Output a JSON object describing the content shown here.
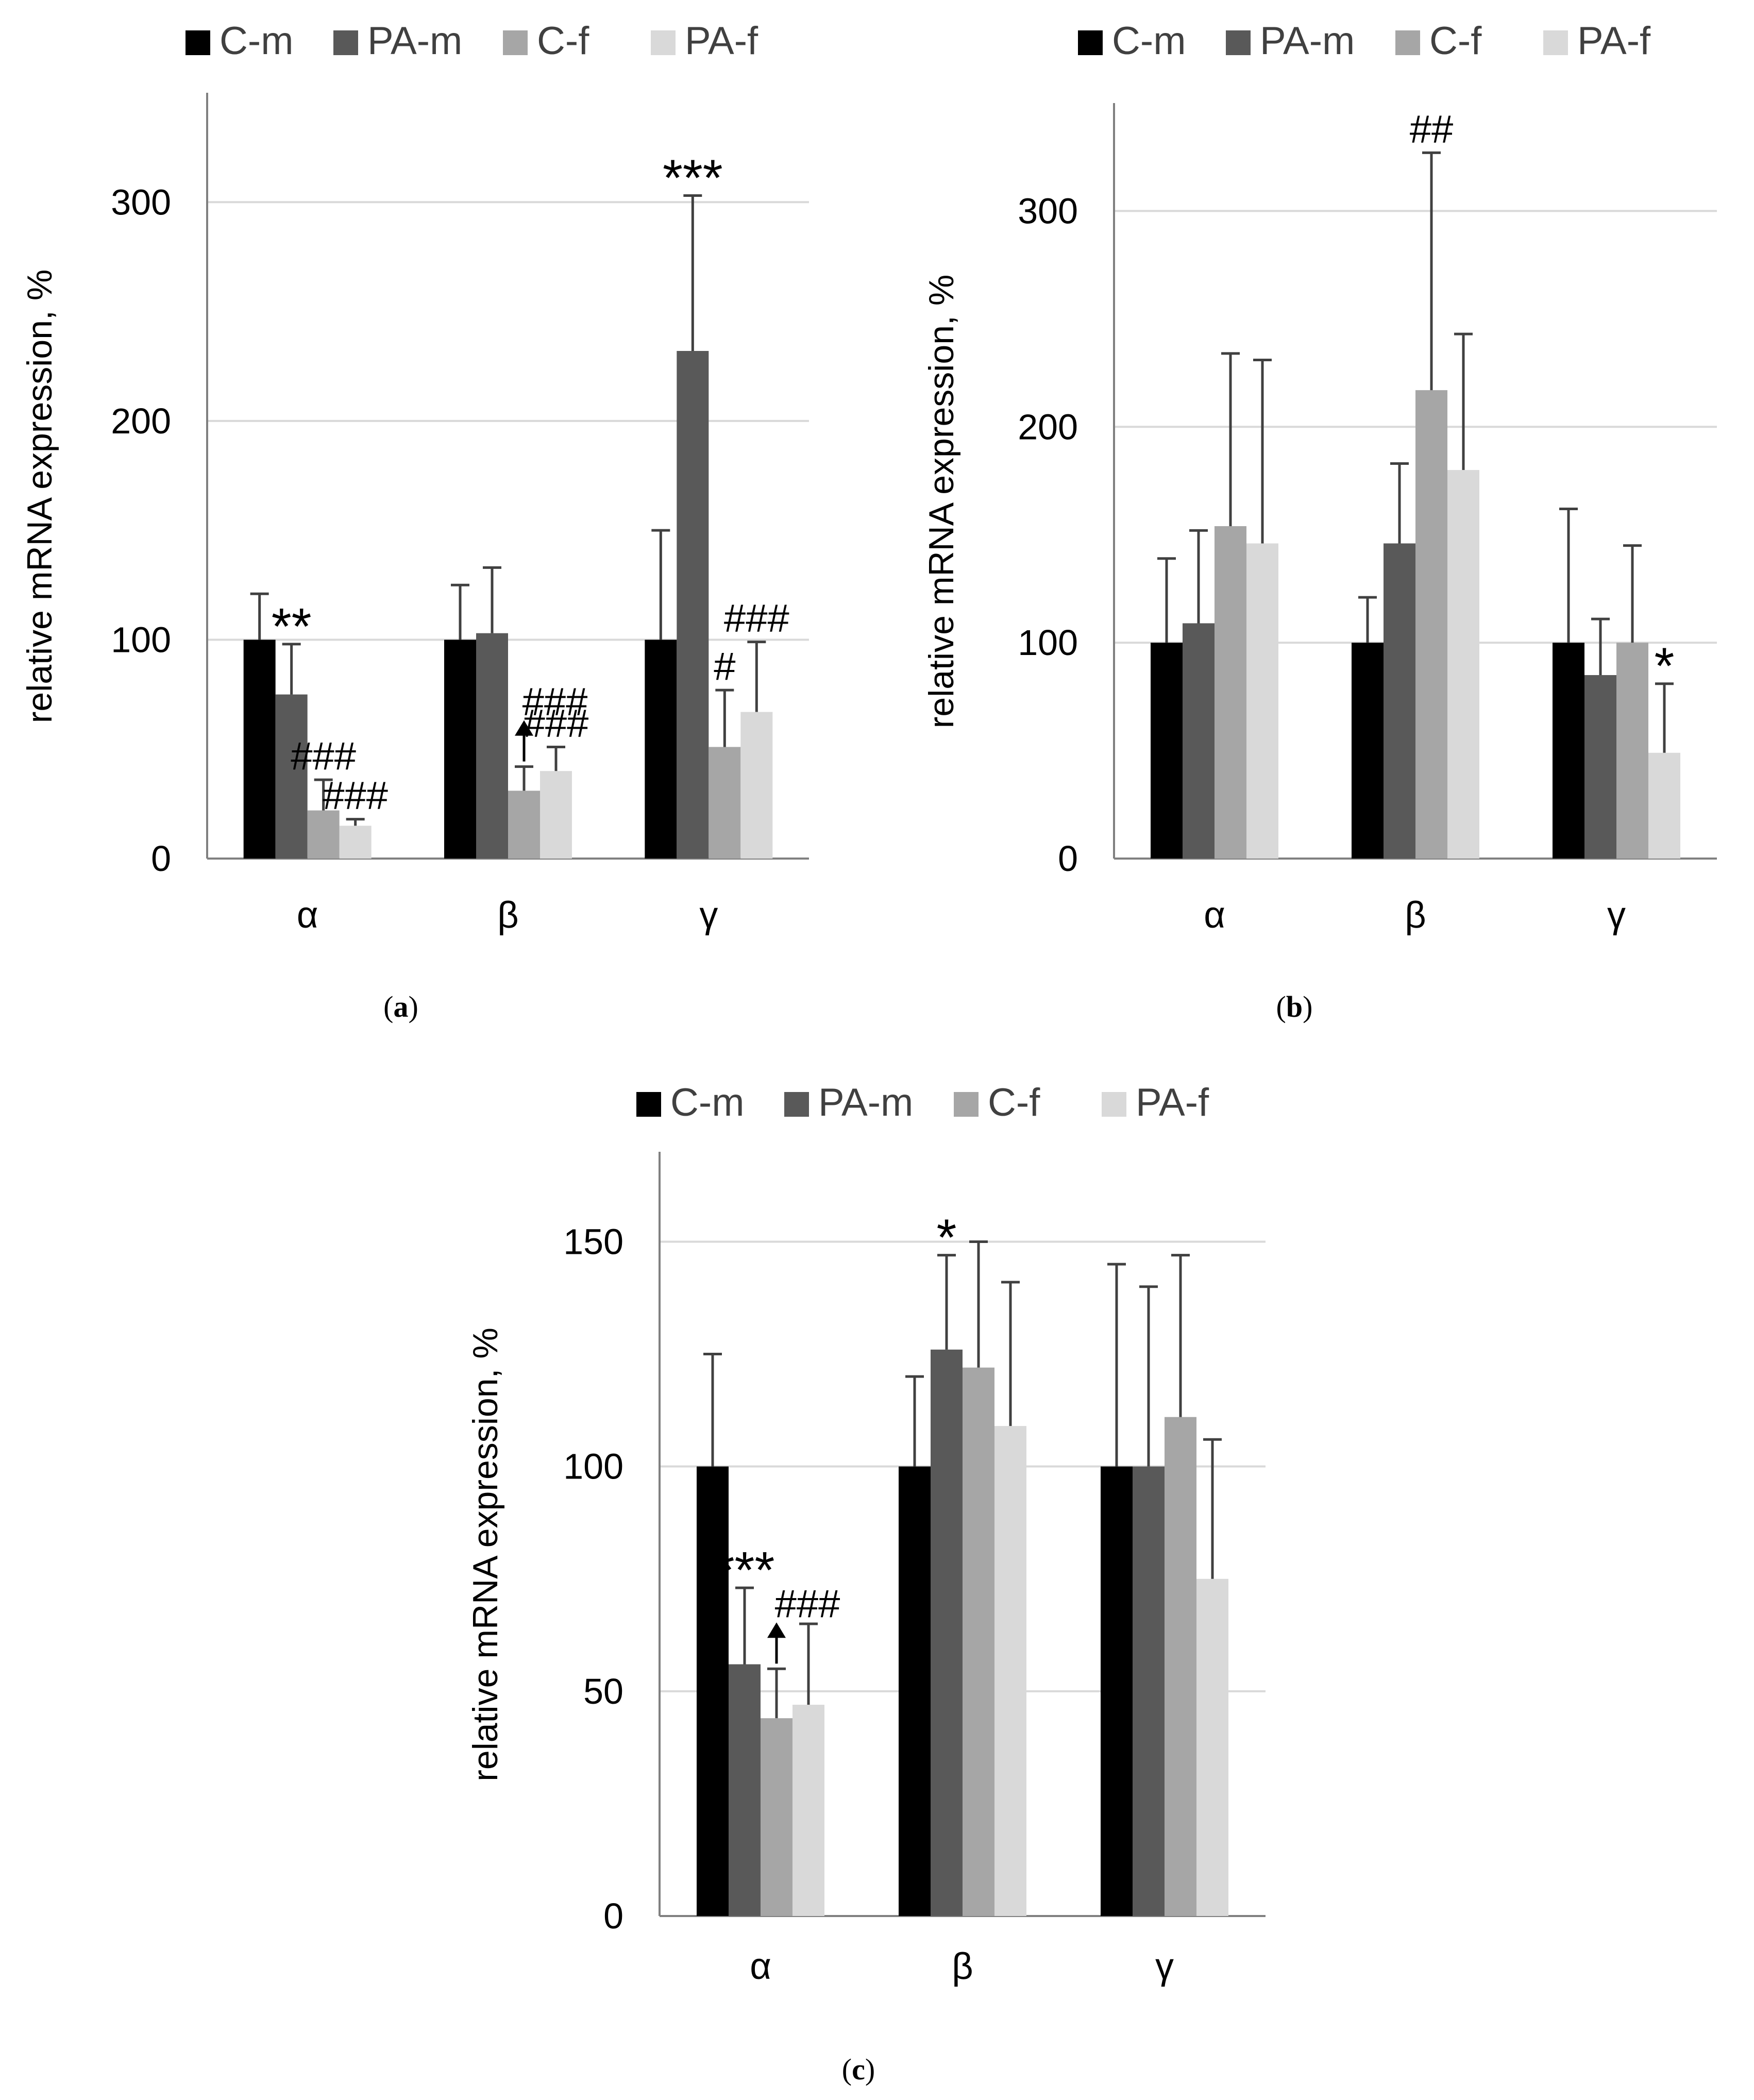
{
  "colors": {
    "C-m": "#000000",
    "PA-m": "#595959",
    "C-f": "#a6a6a6",
    "PA-f": "#d9d9d9",
    "grid": "#d9d9d9",
    "axis": "#808080",
    "error": "#404040",
    "text": "#000000"
  },
  "chart_data": [
    {
      "id": "a",
      "type": "bar",
      "caption_label": "a",
      "categories": [
        "α",
        "β",
        "γ"
      ],
      "ylabel": "relative mRNA expression, %",
      "xlabel": "",
      "ylim": [
        0,
        350
      ],
      "yticks": [
        0,
        100,
        200,
        300
      ],
      "grid": true,
      "legend_position": "top",
      "series": [
        {
          "name": "C-m",
          "values": [
            100,
            100,
            100
          ],
          "errors": [
            21,
            25,
            50
          ]
        },
        {
          "name": "PA-m",
          "values": [
            75,
            103,
            232
          ],
          "errors": [
            23,
            30,
            71
          ]
        },
        {
          "name": "C-f",
          "values": [
            22,
            31,
            51
          ],
          "errors": [
            14,
            11,
            26
          ]
        },
        {
          "name": "PA-f",
          "values": [
            15,
            40,
            67
          ],
          "errors": [
            3,
            11,
            32
          ]
        }
      ],
      "annotations": [
        {
          "text": "**",
          "category": "α",
          "series": "PA-m"
        },
        {
          "text": "###",
          "category": "α",
          "series": "C-f"
        },
        {
          "text": "###",
          "category": "α",
          "series": "PA-f"
        },
        {
          "text": "###",
          "category": "β",
          "series": "C-f",
          "arrow": true
        },
        {
          "text": "###",
          "category": "β",
          "series": "PA-f"
        },
        {
          "text": "***",
          "category": "γ",
          "series": "PA-m"
        },
        {
          "text": "#",
          "category": "γ",
          "series": "C-f"
        },
        {
          "text": "###",
          "category": "γ",
          "series": "PA-f"
        }
      ]
    },
    {
      "id": "b",
      "type": "bar",
      "caption_label": "b",
      "categories": [
        "α",
        "β",
        "γ"
      ],
      "ylabel": "relative mRNA expression, %",
      "xlabel": "",
      "ylim": [
        0,
        350
      ],
      "yticks": [
        0,
        100,
        200,
        300
      ],
      "grid": true,
      "legend_position": "top",
      "series": [
        {
          "name": "C-m",
          "values": [
            100,
            100,
            100
          ],
          "errors": [
            39,
            21,
            62
          ]
        },
        {
          "name": "PA-m",
          "values": [
            109,
            146,
            85
          ],
          "errors": [
            43,
            37,
            26
          ]
        },
        {
          "name": "C-f",
          "values": [
            154,
            217,
            100
          ],
          "errors": [
            80,
            110,
            45
          ]
        },
        {
          "name": "PA-f",
          "values": [
            146,
            180,
            49
          ],
          "errors": [
            85,
            63,
            32
          ]
        }
      ],
      "annotations": [
        {
          "text": "##",
          "category": "β",
          "series": "C-f"
        },
        {
          "text": "*",
          "category": "γ",
          "series": "PA-f"
        }
      ]
    },
    {
      "id": "c",
      "type": "bar",
      "caption_label": "c",
      "categories": [
        "α",
        "β",
        "γ"
      ],
      "ylabel": "relative mRNA expression, %",
      "xlabel": "",
      "ylim": [
        0,
        170
      ],
      "yticks": [
        0,
        50,
        100,
        150
      ],
      "grid": true,
      "legend_position": "top",
      "series": [
        {
          "name": "C-m",
          "values": [
            100,
            100,
            100
          ],
          "errors": [
            25,
            20,
            45
          ]
        },
        {
          "name": "PA-m",
          "values": [
            56,
            126,
            100
          ],
          "errors": [
            17,
            21,
            40
          ]
        },
        {
          "name": "C-f",
          "values": [
            44,
            122,
            111
          ],
          "errors": [
            11,
            28,
            36
          ]
        },
        {
          "name": "PA-f",
          "values": [
            47,
            109,
            75
          ],
          "errors": [
            18,
            32,
            31
          ]
        }
      ],
      "annotations": [
        {
          "text": "***",
          "category": "α",
          "series": "PA-m"
        },
        {
          "text": "###",
          "category": "α",
          "series": "C-f",
          "arrow": true
        },
        {
          "text": "*",
          "category": "β",
          "series": "PA-m"
        }
      ]
    }
  ]
}
